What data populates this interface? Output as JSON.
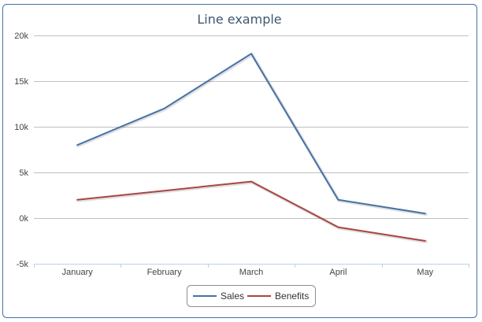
{
  "chart_data": {
    "type": "line",
    "title": "Line example",
    "categories": [
      "January",
      "February",
      "March",
      "April",
      "May"
    ],
    "series": [
      {
        "name": "Sales",
        "color": "#4572a7",
        "values": [
          8000,
          12000,
          18000,
          2000,
          500
        ]
      },
      {
        "name": "Benefits",
        "color": "#aa4643",
        "values": [
          2000,
          3000,
          4000,
          -1000,
          -2500
        ]
      }
    ],
    "ylim": [
      -5000,
      20000
    ],
    "yticks": [
      -5000,
      0,
      5000,
      10000,
      15000,
      20000
    ],
    "ytick_labels": [
      "-5k",
      "0k",
      "5k",
      "10k",
      "15k",
      "20k"
    ],
    "grid": true,
    "legend": "bottom-center"
  }
}
